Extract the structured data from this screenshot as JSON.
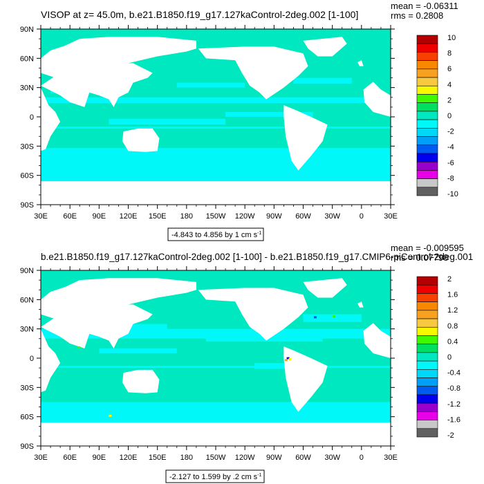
{
  "colors": {
    "ocean_near_zero": "#00e8c0",
    "ocean_negative": "#00f8f8",
    "land": "#ffffff",
    "palette": [
      "#606060",
      "#c8c8c8",
      "#e800e8",
      "#9900cc",
      "#0000ee",
      "#005cf0",
      "#00a0f8",
      "#00d8f8",
      "#00f8f8",
      "#00e8c0",
      "#00e060",
      "#40f800",
      "#f8f800",
      "#f8c840",
      "#f8a020",
      "#f88800",
      "#f84000",
      "#ee0000",
      "#b40000"
    ]
  },
  "chart_data": [
    {
      "type": "heatmap",
      "title": "VISOP at z=  45.0m, b.e21.B1850.f19_g17.127kaControl-2deg.002 [1-100]",
      "mean_label": "mean = -0.06311",
      "rms_label": "rms = 0.2808",
      "x_ticks": [
        "30E",
        "60E",
        "90E",
        "120E",
        "150E",
        "180",
        "150W",
        "120W",
        "90W",
        "60W",
        "30W",
        "0",
        "30E"
      ],
      "y_ticks": [
        "90N",
        "60N",
        "30N",
        "0",
        "30S",
        "60S",
        "90S"
      ],
      "colorbar": {
        "labels": [
          "10",
          "8",
          "6",
          "4",
          "2",
          "0",
          "-2",
          "-4",
          "-6",
          "-8",
          "-10"
        ],
        "levels": [
          -10,
          -9,
          -8,
          -7,
          -6,
          -5,
          -4,
          -3,
          -2,
          -1,
          0,
          1,
          2,
          3,
          4,
          5,
          6,
          7,
          8,
          9,
          10
        ]
      },
      "range_label": "-4.843 to 4.856 by 1 cm s",
      "range_unit_sup": "-1",
      "range": {
        "min": -4.843,
        "max": 4.856,
        "interval": 1
      }
    },
    {
      "type": "heatmap",
      "title": "b.e21.B1850.f19_g17.127kaControl-2deg.002 [1-100] - b.e21.B1850.f19_g17.CMIP6-piControl-2deg.001",
      "mean_label": "mean = -0.009595",
      "rms_label": "rms = 0.07798",
      "x_ticks": [
        "30E",
        "60E",
        "90E",
        "120E",
        "150E",
        "180",
        "150W",
        "120W",
        "90W",
        "60W",
        "30W",
        "0",
        "30E"
      ],
      "y_ticks": [
        "90N",
        "60N",
        "30N",
        "0",
        "30S",
        "60S",
        "90S"
      ],
      "colorbar": {
        "labels": [
          "2",
          "1.6",
          "1.2",
          "0.8",
          "0.4",
          "0",
          "-0.4",
          "-0.8",
          "-1.2",
          "-1.6",
          "-2"
        ],
        "levels": [
          -2,
          -1.8,
          -1.6,
          -1.4,
          -1.2,
          -1,
          -0.8,
          -0.6,
          -0.4,
          -0.2,
          0,
          0.2,
          0.4,
          0.6,
          0.8,
          1,
          1.2,
          1.4,
          1.6,
          1.8,
          2
        ]
      },
      "range_label": "-2.127 to 1.599 by .2 cm s",
      "range_unit_sup": "-1",
      "range": {
        "min": -2.127,
        "max": 1.599,
        "interval": 0.2
      }
    }
  ]
}
